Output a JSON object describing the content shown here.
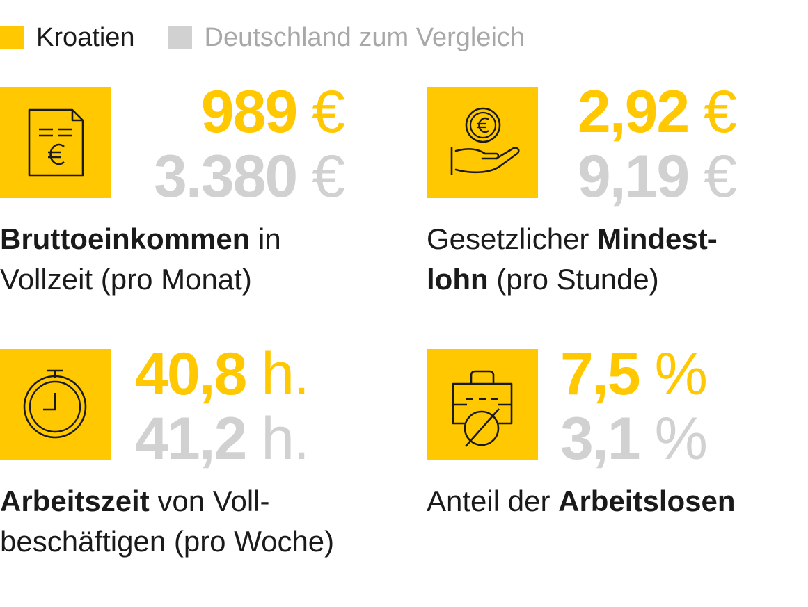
{
  "legend": {
    "primary": {
      "label": "Kroatien",
      "color": "#ffc800"
    },
    "secondary": {
      "label": "Deutschland zum Vergleich",
      "color": "#d1d1d1"
    }
  },
  "stats": [
    {
      "icon": "document-euro-icon",
      "kroatien": {
        "number": "989",
        "unit": "€"
      },
      "deutschland": {
        "number": "3.380",
        "unit": "€"
      },
      "label": {
        "line1_bold": "Bruttoeinkommen",
        "line1_rest": " in",
        "line2": "Vollzeit (pro Monat)"
      }
    },
    {
      "icon": "hand-coin-icon",
      "kroatien": {
        "number": "2,92",
        "unit": "€"
      },
      "deutschland": {
        "number": "9,19",
        "unit": "€"
      },
      "label": {
        "line1_pre": "Gesetzlicher ",
        "line1_bold": "Mindest-",
        "line2_bold": "lohn",
        "line2_rest": " (pro Stunde)"
      }
    },
    {
      "icon": "stopwatch-icon",
      "kroatien": {
        "number": "40,8",
        "unit": "h."
      },
      "deutschland": {
        "number": "41,2",
        "unit": "h."
      },
      "label": {
        "line1_bold": "Arbeitszeit",
        "line1_rest": " von Voll-",
        "line2": "beschäftigen (pro Woche)"
      }
    },
    {
      "icon": "briefcase-crossed-icon",
      "kroatien": {
        "number": "7,5",
        "unit": "%"
      },
      "deutschland": {
        "number": "3,1",
        "unit": "%"
      },
      "label": {
        "line1_pre": "Anteil der ",
        "line1_bold": "Arbeitslosen"
      }
    }
  ]
}
